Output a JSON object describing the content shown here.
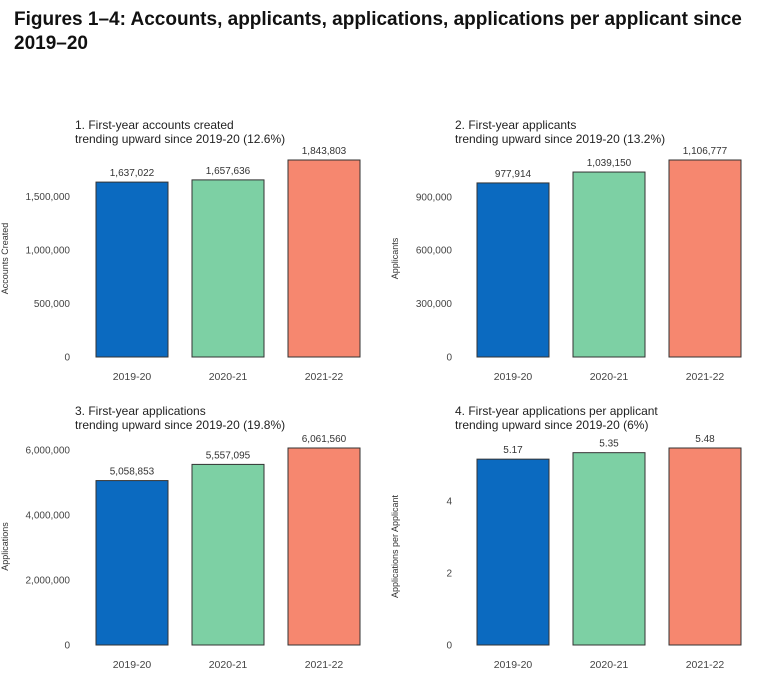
{
  "page": {
    "title": "Figures 1–4: Accounts, applicants, applications, applications per applicant since 2019–20"
  },
  "colors": {
    "bars": [
      "#0b6ac0",
      "#7dd0a4",
      "#f6876f"
    ],
    "outline": "#333333"
  },
  "chart_data": [
    {
      "type": "bar",
      "title_lines": [
        "1. First-year accounts created",
        "trending upward since 2019-20 (12.6%)"
      ],
      "ylabel": "Accounts Created",
      "categories": [
        "2019-20",
        "2020-21",
        "2021-22"
      ],
      "values": [
        1637022,
        1657636,
        1843803
      ],
      "value_labels": [
        "1,637,022",
        "1,657,636",
        "1,843,803"
      ],
      "yticks": [
        0,
        500000,
        1000000,
        1500000
      ],
      "ytick_labels": [
        "0",
        "500,000",
        "1,000,000",
        "1,500,000"
      ],
      "ylim": [
        0,
        1843803
      ],
      "grid": false
    },
    {
      "type": "bar",
      "title_lines": [
        "2. First-year applicants",
        "trending upward since 2019-20 (13.2%)"
      ],
      "ylabel": "Applicants",
      "categories": [
        "2019-20",
        "2020-21",
        "2021-22"
      ],
      "values": [
        977914,
        1039150,
        1106777
      ],
      "value_labels": [
        "977,914",
        "1,039,150",
        "1,106,777"
      ],
      "yticks": [
        0,
        300000,
        600000,
        900000
      ],
      "ytick_labels": [
        "0",
        "300,000",
        "600,000",
        "900,000"
      ],
      "ylim": [
        0,
        1106777
      ],
      "grid": false
    },
    {
      "type": "bar",
      "title_lines": [
        "3. First-year applications",
        "trending upward since 2019-20 (19.8%)"
      ],
      "ylabel": "Applications",
      "categories": [
        "2019-20",
        "2020-21",
        "2021-22"
      ],
      "values": [
        5058853,
        5557095,
        6061560
      ],
      "value_labels": [
        "5,058,853",
        "5,557,095",
        "6,061,560"
      ],
      "yticks": [
        0,
        2000000,
        4000000,
        6000000
      ],
      "ytick_labels": [
        "0",
        "2,000,000",
        "4,000,000",
        "6,000,000"
      ],
      "ylim": [
        0,
        6061560
      ],
      "grid": false
    },
    {
      "type": "bar",
      "title_lines": [
        "4. First-year applications per applicant",
        "trending upward since 2019-20 (6%)"
      ],
      "ylabel": "Applications per Applicant",
      "categories": [
        "2019-20",
        "2020-21",
        "2021-22"
      ],
      "values": [
        5.17,
        5.35,
        5.48
      ],
      "value_labels": [
        "5.17",
        "5.35",
        "5.48"
      ],
      "yticks": [
        0,
        2,
        4
      ],
      "ytick_labels": [
        "0",
        "2",
        "4"
      ],
      "ylim": [
        0,
        5.48
      ],
      "grid": false
    }
  ]
}
